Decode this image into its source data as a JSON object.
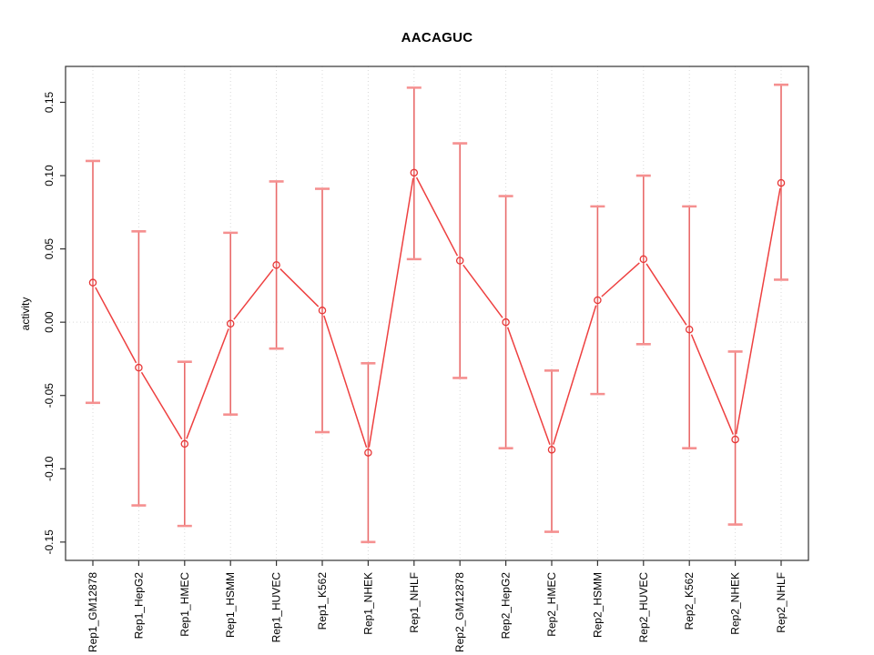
{
  "chart_data": {
    "type": "line",
    "title": "AACAGUC",
    "ylabel": "activity",
    "xlabel": "",
    "legend": "none",
    "categories": [
      "Rep1_GM12878",
      "Rep1_HepG2",
      "Rep1_HMEC",
      "Rep1_HSMM",
      "Rep1_HUVEC",
      "Rep1_K562",
      "Rep1_NHEK",
      "Rep1_NHLF",
      "Rep2_GM12878",
      "Rep2_HepG2",
      "Rep2_HMEC",
      "Rep2_HSMM",
      "Rep2_HUVEC",
      "Rep2_K562",
      "Rep2_NHEK",
      "Rep2_NHLF"
    ],
    "series": [
      {
        "name": "activity",
        "values": [
          0.027,
          -0.031,
          -0.083,
          -0.001,
          0.039,
          0.008,
          -0.089,
          0.102,
          0.042,
          0.0,
          -0.087,
          0.015,
          0.043,
          -0.005,
          -0.08,
          0.095
        ],
        "error_low": [
          -0.055,
          -0.125,
          -0.139,
          -0.063,
          -0.018,
          -0.075,
          -0.15,
          0.043,
          -0.038,
          -0.086,
          -0.143,
          -0.049,
          -0.015,
          -0.086,
          -0.138,
          0.029
        ],
        "error_high": [
          0.11,
          0.062,
          -0.027,
          0.061,
          0.096,
          0.091,
          -0.028,
          0.16,
          0.122,
          0.086,
          -0.033,
          0.079,
          0.1,
          0.079,
          -0.02,
          0.162
        ]
      }
    ],
    "yticks": [
      0.15,
      0.1,
      0.05,
      0.0,
      -0.05,
      -0.1,
      -0.15
    ],
    "ytick_labels": [
      "0.15",
      "0.10",
      "0.05",
      "0.00",
      "-0.05",
      "-0.10",
      "-0.15"
    ],
    "ylim": [
      -0.1625,
      0.1745
    ],
    "grid": {
      "vertical_dotted": true,
      "zero_line_dotted": true,
      "horizontal_other": false
    },
    "colors": {
      "line": "#ee4040",
      "point_stroke": "#e73636",
      "error_bar": "#e96b6b",
      "error_cap": "#f59090",
      "gridline": "#d9d9d9",
      "axis": "#333333",
      "text": "#000000"
    }
  }
}
